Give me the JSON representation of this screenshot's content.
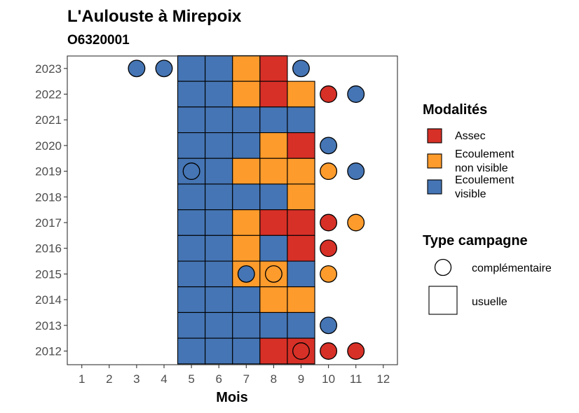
{
  "chart_data": {
    "type": "heatmap",
    "title": "L'Aulouste à Mirepoix",
    "subtitle": "O6320001",
    "xlabel": "Mois",
    "ylabel": "",
    "x_ticks": [
      1,
      2,
      3,
      4,
      5,
      6,
      7,
      8,
      9,
      10,
      11,
      12
    ],
    "xlim": [
      0.5,
      12.5
    ],
    "y_ticks": [
      2012,
      2013,
      2014,
      2015,
      2016,
      2017,
      2018,
      2019,
      2020,
      2021,
      2022,
      2023
    ],
    "grid": false,
    "colors": {
      "Assec": "#d73027",
      "Ecoulement non visible": "#fd9b2c",
      "Ecoulement visible": "#4575b4"
    },
    "legends": [
      {
        "title": "Modalités",
        "placement": "right",
        "items": [
          {
            "key": "Assec",
            "lines": [
              "Assec"
            ]
          },
          {
            "key": "Ecoulement non visible",
            "lines": [
              "Ecoulement",
              "non visible"
            ]
          },
          {
            "key": "Ecoulement visible",
            "lines": [
              "Ecoulement",
              "visible"
            ]
          }
        ]
      },
      {
        "title": "Type campagne",
        "placement": "right",
        "items": [
          {
            "shape": "circle",
            "label": "complémentaire"
          },
          {
            "shape": "square",
            "label": "usuelle"
          }
        ]
      }
    ],
    "usuelle": [
      {
        "year": 2023,
        "month": 5,
        "modalite": "Ecoulement visible"
      },
      {
        "year": 2023,
        "month": 6,
        "modalite": "Ecoulement visible"
      },
      {
        "year": 2023,
        "month": 7,
        "modalite": "Ecoulement non visible"
      },
      {
        "year": 2023,
        "month": 8,
        "modalite": "Assec"
      },
      {
        "year": 2022,
        "month": 5,
        "modalite": "Ecoulement visible"
      },
      {
        "year": 2022,
        "month": 6,
        "modalite": "Ecoulement visible"
      },
      {
        "year": 2022,
        "month": 7,
        "modalite": "Ecoulement non visible"
      },
      {
        "year": 2022,
        "month": 8,
        "modalite": "Assec"
      },
      {
        "year": 2022,
        "month": 9,
        "modalite": "Ecoulement non visible"
      },
      {
        "year": 2021,
        "month": 5,
        "modalite": "Ecoulement visible"
      },
      {
        "year": 2021,
        "month": 6,
        "modalite": "Ecoulement visible"
      },
      {
        "year": 2021,
        "month": 7,
        "modalite": "Ecoulement visible"
      },
      {
        "year": 2021,
        "month": 8,
        "modalite": "Ecoulement visible"
      },
      {
        "year": 2021,
        "month": 9,
        "modalite": "Ecoulement visible"
      },
      {
        "year": 2020,
        "month": 5,
        "modalite": "Ecoulement visible"
      },
      {
        "year": 2020,
        "month": 6,
        "modalite": "Ecoulement visible"
      },
      {
        "year": 2020,
        "month": 7,
        "modalite": "Ecoulement visible"
      },
      {
        "year": 2020,
        "month": 8,
        "modalite": "Ecoulement non visible"
      },
      {
        "year": 2020,
        "month": 9,
        "modalite": "Assec"
      },
      {
        "year": 2019,
        "month": 5,
        "modalite": "Ecoulement visible"
      },
      {
        "year": 2019,
        "month": 6,
        "modalite": "Ecoulement visible"
      },
      {
        "year": 2019,
        "month": 7,
        "modalite": "Ecoulement non visible"
      },
      {
        "year": 2019,
        "month": 8,
        "modalite": "Ecoulement non visible"
      },
      {
        "year": 2019,
        "month": 9,
        "modalite": "Ecoulement non visible"
      },
      {
        "year": 2018,
        "month": 5,
        "modalite": "Ecoulement visible"
      },
      {
        "year": 2018,
        "month": 6,
        "modalite": "Ecoulement visible"
      },
      {
        "year": 2018,
        "month": 7,
        "modalite": "Ecoulement visible"
      },
      {
        "year": 2018,
        "month": 8,
        "modalite": "Ecoulement visible"
      },
      {
        "year": 2018,
        "month": 9,
        "modalite": "Ecoulement non visible"
      },
      {
        "year": 2017,
        "month": 5,
        "modalite": "Ecoulement visible"
      },
      {
        "year": 2017,
        "month": 6,
        "modalite": "Ecoulement visible"
      },
      {
        "year": 2017,
        "month": 7,
        "modalite": "Ecoulement non visible"
      },
      {
        "year": 2017,
        "month": 8,
        "modalite": "Assec"
      },
      {
        "year": 2017,
        "month": 9,
        "modalite": "Assec"
      },
      {
        "year": 2016,
        "month": 5,
        "modalite": "Ecoulement visible"
      },
      {
        "year": 2016,
        "month": 6,
        "modalite": "Ecoulement visible"
      },
      {
        "year": 2016,
        "month": 7,
        "modalite": "Ecoulement non visible"
      },
      {
        "year": 2016,
        "month": 8,
        "modalite": "Ecoulement visible"
      },
      {
        "year": 2016,
        "month": 9,
        "modalite": "Assec"
      },
      {
        "year": 2015,
        "month": 5,
        "modalite": "Ecoulement visible"
      },
      {
        "year": 2015,
        "month": 6,
        "modalite": "Ecoulement visible"
      },
      {
        "year": 2015,
        "month": 7,
        "modalite": "Ecoulement non visible"
      },
      {
        "year": 2015,
        "month": 8,
        "modalite": "Ecoulement non visible"
      },
      {
        "year": 2015,
        "month": 9,
        "modalite": "Ecoulement visible"
      },
      {
        "year": 2014,
        "month": 5,
        "modalite": "Ecoulement visible"
      },
      {
        "year": 2014,
        "month": 6,
        "modalite": "Ecoulement visible"
      },
      {
        "year": 2014,
        "month": 7,
        "modalite": "Ecoulement visible"
      },
      {
        "year": 2014,
        "month": 8,
        "modalite": "Ecoulement non visible"
      },
      {
        "year": 2014,
        "month": 9,
        "modalite": "Ecoulement non visible"
      },
      {
        "year": 2013,
        "month": 5,
        "modalite": "Ecoulement visible"
      },
      {
        "year": 2013,
        "month": 6,
        "modalite": "Ecoulement visible"
      },
      {
        "year": 2013,
        "month": 7,
        "modalite": "Ecoulement visible"
      },
      {
        "year": 2013,
        "month": 8,
        "modalite": "Ecoulement visible"
      },
      {
        "year": 2013,
        "month": 9,
        "modalite": "Ecoulement visible"
      },
      {
        "year": 2012,
        "month": 5,
        "modalite": "Ecoulement visible"
      },
      {
        "year": 2012,
        "month": 6,
        "modalite": "Ecoulement visible"
      },
      {
        "year": 2012,
        "month": 7,
        "modalite": "Ecoulement visible"
      },
      {
        "year": 2012,
        "month": 8,
        "modalite": "Assec"
      },
      {
        "year": 2012,
        "month": 9,
        "modalite": "Assec"
      }
    ],
    "complementaire": [
      {
        "year": 2023,
        "month": 3,
        "modalite": "Ecoulement visible"
      },
      {
        "year": 2023,
        "month": 4,
        "modalite": "Ecoulement visible"
      },
      {
        "year": 2023,
        "month": 9,
        "modalite": "Ecoulement visible"
      },
      {
        "year": 2022,
        "month": 10,
        "modalite": "Assec"
      },
      {
        "year": 2022,
        "month": 11,
        "modalite": "Ecoulement visible"
      },
      {
        "year": 2020,
        "month": 10,
        "modalite": "Ecoulement visible"
      },
      {
        "year": 2019,
        "month": 5,
        "modalite": "Ecoulement visible"
      },
      {
        "year": 2019,
        "month": 10,
        "modalite": "Ecoulement non visible"
      },
      {
        "year": 2019,
        "month": 11,
        "modalite": "Ecoulement visible"
      },
      {
        "year": 2017,
        "month": 10,
        "modalite": "Assec"
      },
      {
        "year": 2017,
        "month": 11,
        "modalite": "Ecoulement non visible"
      },
      {
        "year": 2016,
        "month": 10,
        "modalite": "Assec"
      },
      {
        "year": 2015,
        "month": 7,
        "modalite": "Ecoulement visible"
      },
      {
        "year": 2015,
        "month": 8,
        "modalite": "Ecoulement non visible"
      },
      {
        "year": 2015,
        "month": 10,
        "modalite": "Ecoulement non visible"
      },
      {
        "year": 2013,
        "month": 10,
        "modalite": "Ecoulement visible"
      },
      {
        "year": 2012,
        "month": 9,
        "modalite": "Assec"
      },
      {
        "year": 2012,
        "month": 10,
        "modalite": "Assec"
      },
      {
        "year": 2012,
        "month": 11,
        "modalite": "Assec"
      }
    ]
  }
}
